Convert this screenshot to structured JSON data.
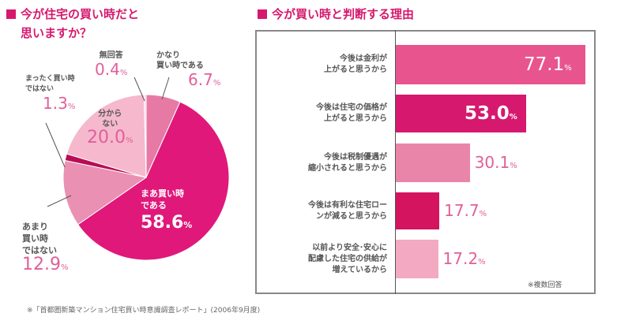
{
  "pie": {
    "heading_line1": "今が住宅の買い時だと",
    "heading_line2": "思いますか？"
  },
  "bars": {
    "heading": "今が買い時と判断する理由",
    "note": "※複数回答"
  },
  "footer": "※「首都圏新築マンション住宅買い時意識調査レポート」(2006年9月度)",
  "chart_data": [
    {
      "type": "pie",
      "title": "今が住宅の買い時だと思いますか？",
      "unit": "%",
      "start": "top, clockwise",
      "slices": [
        {
          "label_lines": [
            "かなり",
            "買い時である"
          ],
          "value": 6.7,
          "display": "6.7",
          "color": "#e67aa5"
        },
        {
          "label_lines": [
            "まあ買い時",
            "である"
          ],
          "value": 58.6,
          "display": "58.6",
          "color": "#e0187a"
        },
        {
          "label_lines": [
            "あまり",
            "買い時",
            "ではない"
          ],
          "value": 12.9,
          "display": "12.9",
          "color": "#ea90b2"
        },
        {
          "label_lines": [
            "まったく買い時",
            "ではない"
          ],
          "value": 1.3,
          "display": "1.3",
          "color": "#b80c55"
        },
        {
          "label_lines": [
            "分から",
            "ない"
          ],
          "value": 20.0,
          "display": "20.0",
          "color": "#f6b8cd"
        },
        {
          "label_lines": [
            "無回答"
          ],
          "value": 0.4,
          "display": "0.4",
          "color": "#f9d4e0"
        }
      ]
    },
    {
      "type": "bar",
      "orientation": "horizontal",
      "title": "今が買い時と判断する理由",
      "unit": "%",
      "xlim": [
        0,
        80
      ],
      "categories": [
        [
          "今後は金利が",
          "上がると思うから"
        ],
        [
          "今後は住宅の価格が",
          "上がると思うから"
        ],
        [
          "今後は税制優遇が",
          "縮小されると思うから"
        ],
        [
          "今後は有利な住宅ロー",
          "ンが減ると思うから"
        ],
        [
          "以前より安全･安心に",
          "配慮した住宅の供給が",
          "増えているから"
        ]
      ],
      "values": [
        77.1,
        53.0,
        30.1,
        17.7,
        17.2
      ],
      "display": [
        "77.1",
        "53.0",
        "30.1",
        "17.7",
        "17.2"
      ],
      "colors": [
        "#e8558e",
        "#d6186e",
        "#e985a8",
        "#d4145e",
        "#f4a9c2"
      ],
      "label_inside": [
        true,
        true,
        false,
        false,
        false
      ],
      "note": "※複数回答"
    }
  ]
}
